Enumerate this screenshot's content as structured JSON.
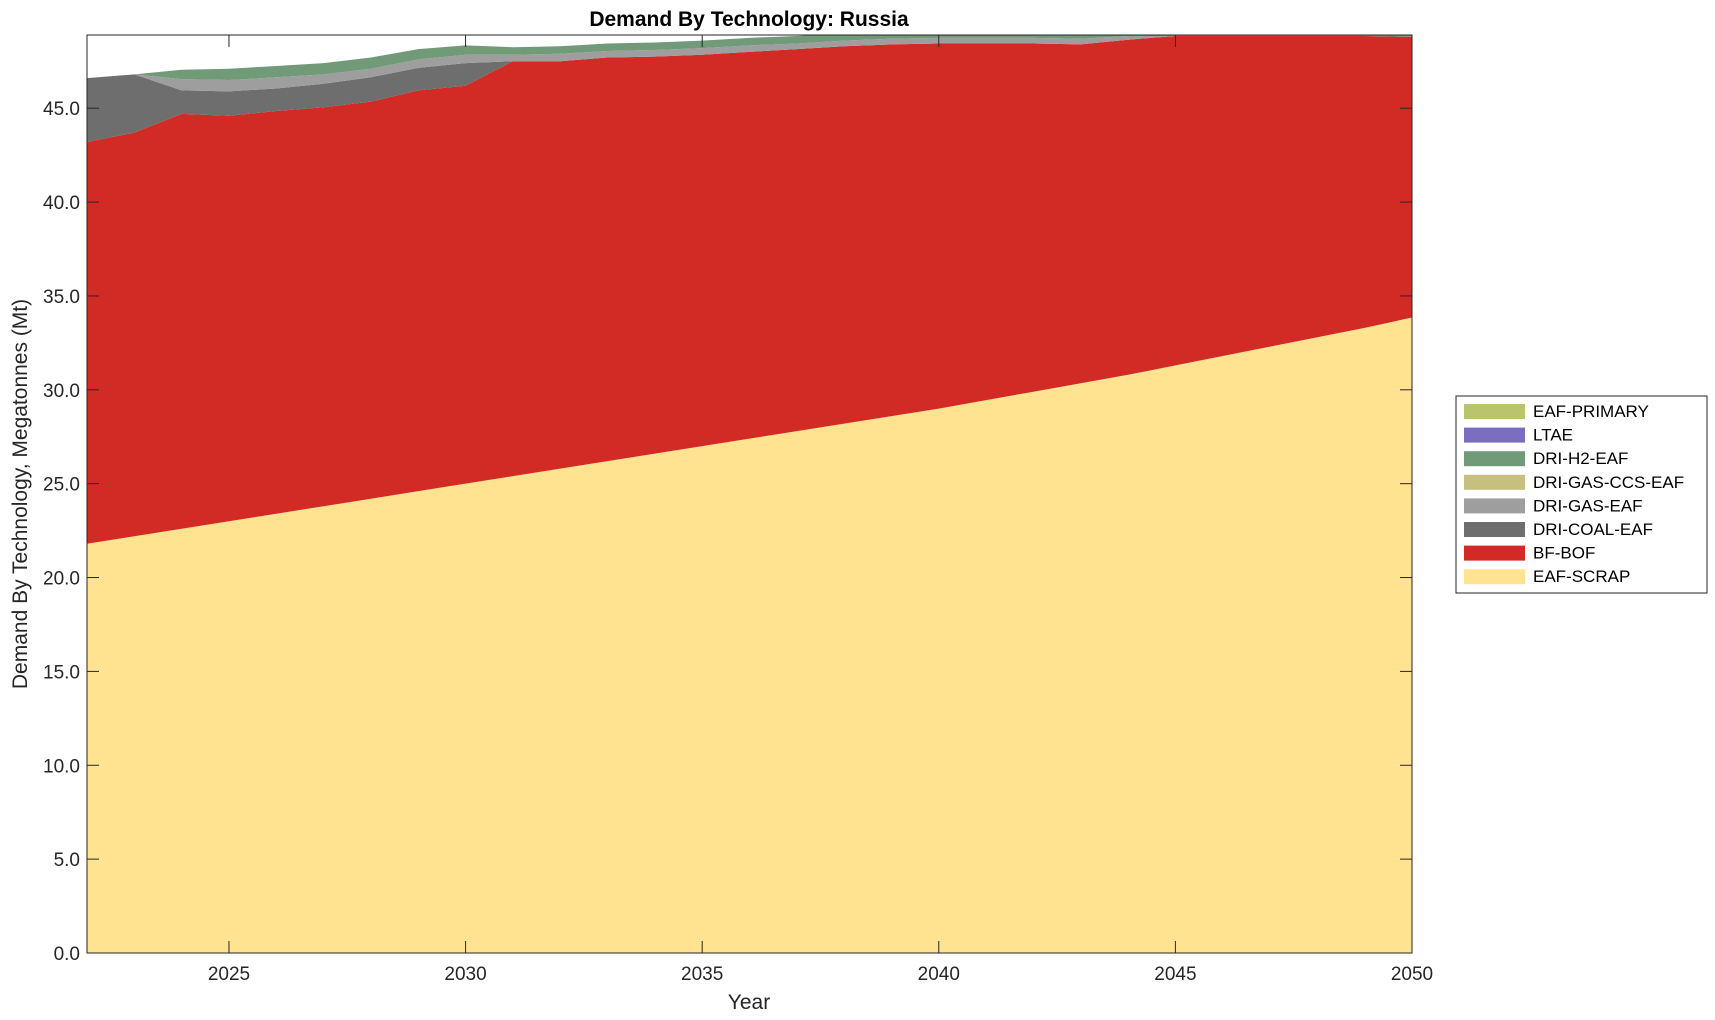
{
  "chart_data": {
    "type": "area",
    "stacked": true,
    "title": "Demand By Technology: Russia",
    "xlabel": "Year",
    "ylabel": "Demand By Technology, Megatonnes (Mt)",
    "xlim": [
      2022,
      2050
    ],
    "ylim": [
      0,
      48.9
    ],
    "x_ticks": [
      2025,
      2030,
      2035,
      2040,
      2045,
      2050
    ],
    "y_ticks": [
      "0.0",
      "5.0",
      "10.0",
      "15.0",
      "20.0",
      "25.0",
      "30.0",
      "35.0",
      "40.0",
      "45.0"
    ],
    "grid": false,
    "legend_position": "right",
    "x": [
      2022,
      2023,
      2024,
      2025,
      2026,
      2027,
      2028,
      2029,
      2030,
      2031,
      2032,
      2033,
      2034,
      2035,
      2036,
      2037,
      2038,
      2039,
      2040,
      2041,
      2042,
      2043,
      2044,
      2045,
      2046,
      2047,
      2048,
      2049,
      2050
    ],
    "series": [
      {
        "name": "EAF-SCRAP",
        "color": "#FFE391",
        "values": [
          21.8,
          22.2,
          22.6,
          23.0,
          23.4,
          23.8,
          24.2,
          24.6,
          25.0,
          25.4,
          25.8,
          26.2,
          26.6,
          27.0,
          27.4,
          27.8,
          28.2,
          28.6,
          29.0,
          29.45,
          29.9,
          30.35,
          30.8,
          31.3,
          31.8,
          32.3,
          32.8,
          33.3,
          33.85
        ]
      },
      {
        "name": "BF-BOF",
        "color": "#D22A25",
        "values": [
          21.4,
          21.5,
          22.1,
          21.6,
          21.45,
          21.25,
          21.15,
          21.35,
          21.2,
          22.1,
          21.7,
          21.5,
          21.15,
          20.85,
          20.6,
          20.35,
          20.1,
          19.8,
          19.45,
          19.0,
          18.55,
          18.05,
          17.85,
          17.55,
          17.05,
          16.55,
          16.05,
          15.55,
          14.95
        ]
      },
      {
        "name": "DRI-COAL-EAF",
        "color": "#6E6E6E",
        "values": [
          3.4,
          3.1,
          1.25,
          1.3,
          1.2,
          1.25,
          1.3,
          1.2,
          1.2,
          0.0,
          0.0,
          0.0,
          0.0,
          0.0,
          0.0,
          0.0,
          0.0,
          0.0,
          0.0,
          0.0,
          0.0,
          0.0,
          0.0,
          0.0,
          0.0,
          0.0,
          0.0,
          0.0,
          0.0
        ]
      },
      {
        "name": "DRI-GAS-EAF",
        "color": "#9E9E9E",
        "values": [
          0.0,
          0.0,
          0.6,
          0.6,
          0.6,
          0.5,
          0.45,
          0.45,
          0.45,
          0.35,
          0.4,
          0.35,
          0.35,
          0.35,
          0.35,
          0.3,
          0.3,
          0.3,
          0.3,
          0.3,
          0.3,
          0.3,
          0.2,
          0.0,
          0.0,
          0.0,
          0.0,
          0.0,
          0.0
        ]
      },
      {
        "name": "DRI-GAS-CCS-EAF",
        "color": "#C6BF7E",
        "values": [
          0.0,
          0.0,
          0.0,
          0.0,
          0.0,
          0.0,
          0.0,
          0.0,
          0.0,
          0.0,
          0.0,
          0.0,
          0.0,
          0.0,
          0.0,
          0.0,
          0.0,
          0.0,
          0.0,
          0.0,
          0.0,
          0.0,
          0.0,
          0.0,
          0.0,
          0.0,
          0.0,
          0.0,
          0.0
        ]
      },
      {
        "name": "DRI-H2-EAF",
        "color": "#719A79",
        "values": [
          0.0,
          0.0,
          0.5,
          0.6,
          0.6,
          0.6,
          0.6,
          0.55,
          0.5,
          0.4,
          0.4,
          0.4,
          0.4,
          0.4,
          0.4,
          0.4,
          0.4,
          0.4,
          0.4,
          0.4,
          0.4,
          0.4,
          0.3,
          0.2,
          0.2,
          0.2,
          0.2,
          0.2,
          0.2
        ]
      },
      {
        "name": "LTAE",
        "color": "#7A6FBF",
        "values": [
          0.0,
          0.0,
          0.0,
          0.0,
          0.0,
          0.0,
          0.0,
          0.0,
          0.0,
          0.0,
          0.0,
          0.0,
          0.0,
          0.0,
          0.0,
          0.0,
          0.0,
          0.0,
          0.0,
          0.0,
          0.0,
          0.0,
          0.0,
          0.0,
          0.0,
          0.0,
          0.0,
          0.0,
          0.0
        ]
      },
      {
        "name": "EAF-PRIMARY",
        "color": "#B9C46C",
        "values": [
          0.0,
          0.0,
          0.0,
          0.0,
          0.0,
          0.0,
          0.0,
          0.0,
          0.0,
          0.0,
          0.0,
          0.0,
          0.0,
          0.0,
          0.0,
          0.0,
          0.0,
          0.0,
          0.0,
          0.0,
          0.0,
          0.0,
          0.0,
          0.0,
          0.0,
          0.0,
          0.0,
          0.0,
          0.0
        ]
      }
    ]
  }
}
